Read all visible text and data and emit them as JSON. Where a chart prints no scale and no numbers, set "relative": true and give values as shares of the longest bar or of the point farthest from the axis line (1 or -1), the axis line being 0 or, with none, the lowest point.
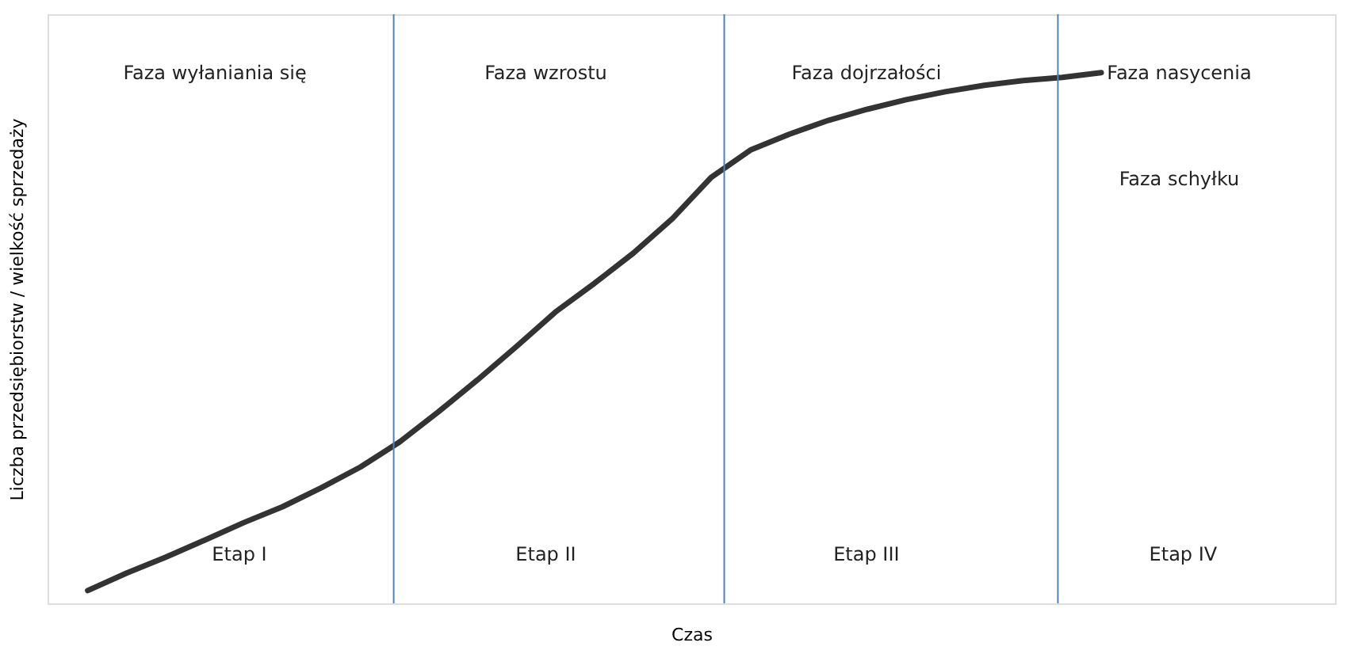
{
  "chart_data": {
    "type": "line",
    "relative": true,
    "xlabel": "Czas",
    "ylabel": "Liczba przedsiębiorstw / wielkość sprzedaży",
    "categories": [
      null,
      null,
      null,
      null,
      null,
      null,
      null,
      null,
      null,
      null,
      null,
      null,
      null,
      null,
      null,
      null,
      null,
      null,
      null,
      null,
      null,
      null,
      null,
      null,
      null,
      null,
      null
    ],
    "tick_labels": false,
    "grid": false,
    "marker": "none",
    "line_style": "solid",
    "series": [
      {
        "color": "#333333",
        "values": [
          0.024,
          0.057,
          0.087,
          0.119,
          0.152,
          0.182,
          0.218,
          0.257,
          0.304,
          0.361,
          0.421,
          0.484,
          0.549,
          0.603,
          0.66,
          0.725,
          0.803,
          0.854,
          0.884,
          0.91,
          0.931,
          0.949,
          0.964,
          0.976,
          0.985,
          0.991,
          1.0
        ]
      }
    ],
    "annotations": [
      "Faza wyłaniania się",
      "Faza wzrostu",
      "Faza dojrzałości",
      "Faza nasycenia",
      "Faza schyłku",
      "Etap I",
      "Etap II",
      "Etap III",
      "Etap IV"
    ]
  }
}
